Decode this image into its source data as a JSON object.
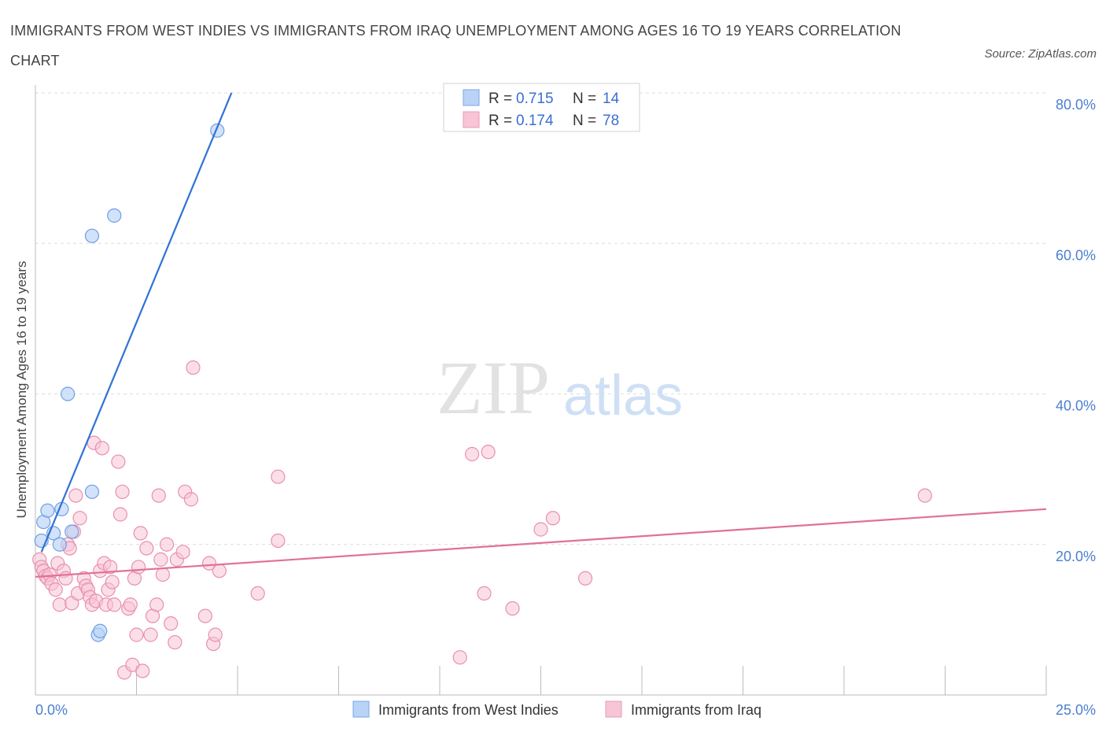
{
  "title": "IMMIGRANTS FROM WEST INDIES VS IMMIGRANTS FROM IRAQ UNEMPLOYMENT AMONG AGES 16 TO 19 YEARS CORRELATION CHART",
  "source": "Source: ZipAtlas.com",
  "watermark": {
    "zip": "ZIP",
    "atlas": "atlas"
  },
  "colors": {
    "blue": "#4a86e8",
    "blue_fill": "#b9d3f7",
    "pink": "#e0709a",
    "pink_fill": "#f7c5d5",
    "axis_text": "#4a7fd0"
  },
  "chart_data": {
    "type": "scatter",
    "title": "IMMIGRANTS FROM WEST INDIES VS IMMIGRANTS FROM IRAQ UNEMPLOYMENT AMONG AGES 16 TO 19 YEARS CORRELATION CHART",
    "xlabel": "",
    "ylabel": "Unemployment Among Ages 16 to 19 years",
    "xlim": [
      0,
      25
    ],
    "ylim": [
      0,
      80
    ],
    "x_tick_labels": [
      "0.0%",
      "25.0%"
    ],
    "y_ticks": [
      20,
      40,
      60,
      80
    ],
    "y_tick_labels": [
      "20.0%",
      "40.0%",
      "60.0%",
      "80.0%"
    ],
    "legend_position": "top-center",
    "series": [
      {
        "name": "Immigrants from West Indies",
        "color": "#4a86e8",
        "r_label": "R =",
        "r_value": "0.715",
        "n_label": "N =",
        "n_value": "14",
        "points": [
          [
            0.15,
            20.5
          ],
          [
            0.2,
            23.0
          ],
          [
            0.3,
            24.5
          ],
          [
            0.45,
            21.5
          ],
          [
            0.6,
            20.0
          ],
          [
            0.65,
            24.7
          ],
          [
            0.8,
            40.0
          ],
          [
            0.9,
            21.7
          ],
          [
            1.4,
            27.0
          ],
          [
            1.4,
            61.0
          ],
          [
            1.55,
            8.0
          ],
          [
            1.6,
            8.5
          ],
          [
            1.95,
            63.7
          ],
          [
            4.5,
            75.0
          ]
        ],
        "trendline": [
          [
            0.15,
            19.0
          ],
          [
            4.85,
            80.0
          ]
        ]
      },
      {
        "name": "Immigrants from Iraq",
        "color": "#e0709a",
        "r_label": "R =",
        "r_value": "0.174",
        "n_label": "N =",
        "n_value": "78",
        "points": [
          [
            0.1,
            18.0
          ],
          [
            0.15,
            17.0
          ],
          [
            0.2,
            16.5
          ],
          [
            0.25,
            15.8
          ],
          [
            0.3,
            15.5
          ],
          [
            0.35,
            16.0
          ],
          [
            0.4,
            14.8
          ],
          [
            0.5,
            14.0
          ],
          [
            0.55,
            17.5
          ],
          [
            0.6,
            12.0
          ],
          [
            0.7,
            16.5
          ],
          [
            0.75,
            15.5
          ],
          [
            0.8,
            20.0
          ],
          [
            0.85,
            19.5
          ],
          [
            0.9,
            12.2
          ],
          [
            0.95,
            21.7
          ],
          [
            1.0,
            26.5
          ],
          [
            1.05,
            13.5
          ],
          [
            1.1,
            23.5
          ],
          [
            1.2,
            15.5
          ],
          [
            1.25,
            14.5
          ],
          [
            1.3,
            14.0
          ],
          [
            1.35,
            13.0
          ],
          [
            1.4,
            12.0
          ],
          [
            1.45,
            33.5
          ],
          [
            1.5,
            12.5
          ],
          [
            1.6,
            16.5
          ],
          [
            1.65,
            32.8
          ],
          [
            1.7,
            17.5
          ],
          [
            1.75,
            12.0
          ],
          [
            1.8,
            14.0
          ],
          [
            1.85,
            17.0
          ],
          [
            1.9,
            15.0
          ],
          [
            1.95,
            12.0
          ],
          [
            2.05,
            31.0
          ],
          [
            2.1,
            24.0
          ],
          [
            2.15,
            27.0
          ],
          [
            2.2,
            3.0
          ],
          [
            2.3,
            11.5
          ],
          [
            2.35,
            12.0
          ],
          [
            2.4,
            4.0
          ],
          [
            2.45,
            15.5
          ],
          [
            2.5,
            8.0
          ],
          [
            2.55,
            17.0
          ],
          [
            2.6,
            21.5
          ],
          [
            2.65,
            3.2
          ],
          [
            2.75,
            19.5
          ],
          [
            2.85,
            8.0
          ],
          [
            2.9,
            10.5
          ],
          [
            3.0,
            12.0
          ],
          [
            3.05,
            26.5
          ],
          [
            3.1,
            18.0
          ],
          [
            3.15,
            16.0
          ],
          [
            3.25,
            20.0
          ],
          [
            3.35,
            9.5
          ],
          [
            3.45,
            7.0
          ],
          [
            3.5,
            18.0
          ],
          [
            3.65,
            19.0
          ],
          [
            3.7,
            27.0
          ],
          [
            3.85,
            26.0
          ],
          [
            3.9,
            43.5
          ],
          [
            4.2,
            10.5
          ],
          [
            4.3,
            17.5
          ],
          [
            4.4,
            6.8
          ],
          [
            4.45,
            8.0
          ],
          [
            4.55,
            16.5
          ],
          [
            5.5,
            13.5
          ],
          [
            6.0,
            29.0
          ],
          [
            6.0,
            20.5
          ],
          [
            10.5,
            5.0
          ],
          [
            10.8,
            32.0
          ],
          [
            11.1,
            13.5
          ],
          [
            11.2,
            32.3
          ],
          [
            11.8,
            11.5
          ],
          [
            12.5,
            22.0
          ],
          [
            12.8,
            23.5
          ],
          [
            13.6,
            15.5
          ],
          [
            22.0,
            26.5
          ]
        ],
        "trendline": [
          [
            0.0,
            15.7
          ],
          [
            25.0,
            24.7
          ]
        ]
      }
    ]
  }
}
